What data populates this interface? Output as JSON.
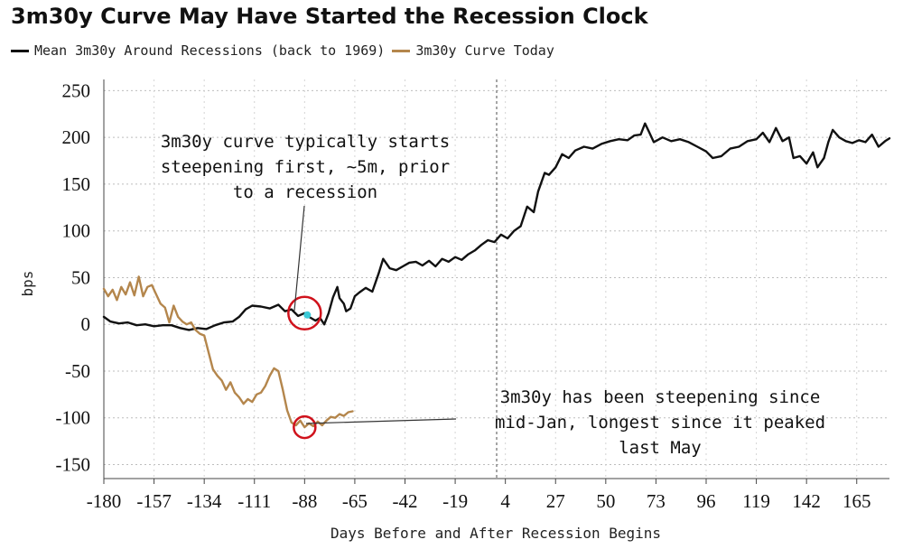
{
  "chart_data": {
    "type": "line",
    "title": "3m30y Curve May Have Started the Recession Clock",
    "xlabel": "Days Before and After Recession Begins",
    "ylabel": "bps",
    "xlim": [
      -180,
      180
    ],
    "ylim": [
      -165,
      262
    ],
    "x_ticks": [
      -180,
      -157,
      -134,
      -111,
      -88,
      -65,
      -42,
      -19,
      4,
      27,
      50,
      73,
      96,
      119,
      142,
      165
    ],
    "y_ticks": [
      250,
      200,
      150,
      100,
      50,
      0,
      -50,
      -100,
      -150
    ],
    "grid": true,
    "legend_position": "top-left",
    "vline_x": 0,
    "series": [
      {
        "name": "Mean 3m30y Around Recessions (back to 1969)",
        "color": "#111111",
        "points": [
          [
            -180,
            8
          ],
          [
            -177,
            3
          ],
          [
            -173,
            1
          ],
          [
            -169,
            2
          ],
          [
            -165,
            -1
          ],
          [
            -161,
            0
          ],
          [
            -157,
            -2
          ],
          [
            -153,
            -1
          ],
          [
            -149,
            -1
          ],
          [
            -145,
            -4
          ],
          [
            -141,
            -6
          ],
          [
            -137,
            -4
          ],
          [
            -133,
            -5
          ],
          [
            -129,
            -1
          ],
          [
            -125,
            2
          ],
          [
            -121,
            3
          ],
          [
            -118,
            8
          ],
          [
            -115,
            16
          ],
          [
            -112,
            20
          ],
          [
            -108,
            19
          ],
          [
            -104,
            17
          ],
          [
            -100,
            21
          ],
          [
            -97,
            14
          ],
          [
            -94,
            16
          ],
          [
            -91,
            9
          ],
          [
            -88,
            12
          ],
          [
            -86,
            8
          ],
          [
            -83,
            4
          ],
          [
            -81,
            7
          ],
          [
            -79,
            0
          ],
          [
            -77,
            12
          ],
          [
            -75,
            29
          ],
          [
            -73,
            40
          ],
          [
            -72,
            28
          ],
          [
            -70,
            22
          ],
          [
            -69,
            14
          ],
          [
            -67,
            17
          ],
          [
            -65,
            30
          ],
          [
            -63,
            34
          ],
          [
            -60,
            39
          ],
          [
            -57,
            35
          ],
          [
            -54,
            55
          ],
          [
            -52,
            70
          ],
          [
            -49,
            60
          ],
          [
            -46,
            58
          ],
          [
            -43,
            62
          ],
          [
            -40,
            66
          ],
          [
            -37,
            67
          ],
          [
            -34,
            63
          ],
          [
            -31,
            68
          ],
          [
            -28,
            62
          ],
          [
            -25,
            70
          ],
          [
            -22,
            67
          ],
          [
            -19,
            72
          ],
          [
            -16,
            69
          ],
          [
            -13,
            75
          ],
          [
            -10,
            79
          ],
          [
            -7,
            85
          ],
          [
            -4,
            90
          ],
          [
            -1,
            88
          ],
          [
            2,
            96
          ],
          [
            5,
            92
          ],
          [
            8,
            100
          ],
          [
            11,
            105
          ],
          [
            14,
            126
          ],
          [
            17,
            120
          ],
          [
            19,
            142
          ],
          [
            22,
            162
          ],
          [
            24,
            160
          ],
          [
            27,
            168
          ],
          [
            30,
            182
          ],
          [
            33,
            178
          ],
          [
            36,
            186
          ],
          [
            40,
            190
          ],
          [
            44,
            188
          ],
          [
            48,
            193
          ],
          [
            52,
            196
          ],
          [
            56,
            198
          ],
          [
            60,
            197
          ],
          [
            63,
            202
          ],
          [
            66,
            203
          ],
          [
            68,
            215
          ],
          [
            70,
            205
          ],
          [
            72,
            195
          ],
          [
            76,
            200
          ],
          [
            80,
            196
          ],
          [
            84,
            198
          ],
          [
            88,
            195
          ],
          [
            92,
            190
          ],
          [
            96,
            185
          ],
          [
            99,
            178
          ],
          [
            103,
            180
          ],
          [
            107,
            188
          ],
          [
            111,
            190
          ],
          [
            115,
            196
          ],
          [
            119,
            198
          ],
          [
            122,
            205
          ],
          [
            125,
            195
          ],
          [
            128,
            210
          ],
          [
            131,
            196
          ],
          [
            134,
            200
          ],
          [
            136,
            178
          ],
          [
            139,
            180
          ],
          [
            142,
            172
          ],
          [
            145,
            184
          ],
          [
            147,
            168
          ],
          [
            150,
            178
          ],
          [
            152,
            195
          ],
          [
            154,
            208
          ],
          [
            157,
            200
          ],
          [
            160,
            196
          ],
          [
            163,
            194
          ],
          [
            166,
            197
          ],
          [
            169,
            195
          ],
          [
            172,
            203
          ],
          [
            175,
            190
          ],
          [
            178,
            196
          ],
          [
            180,
            199
          ]
        ]
      },
      {
        "name": "3m30y Curve Today",
        "color": "#B4864C",
        "points": [
          [
            -180,
            38
          ],
          [
            -178,
            30
          ],
          [
            -176,
            37
          ],
          [
            -174,
            26
          ],
          [
            -172,
            40
          ],
          [
            -170,
            32
          ],
          [
            -168,
            45
          ],
          [
            -166,
            31
          ],
          [
            -164,
            51
          ],
          [
            -162,
            30
          ],
          [
            -160,
            40
          ],
          [
            -158,
            42
          ],
          [
            -156,
            32
          ],
          [
            -154,
            22
          ],
          [
            -152,
            18
          ],
          [
            -150,
            2
          ],
          [
            -148,
            20
          ],
          [
            -146,
            8
          ],
          [
            -144,
            3
          ],
          [
            -142,
            0
          ],
          [
            -140,
            2
          ],
          [
            -138,
            -6
          ],
          [
            -136,
            -10
          ],
          [
            -134,
            -12
          ],
          [
            -132,
            -30
          ],
          [
            -130,
            -48
          ],
          [
            -128,
            -55
          ],
          [
            -126,
            -60
          ],
          [
            -124,
            -70
          ],
          [
            -122,
            -62
          ],
          [
            -120,
            -73
          ],
          [
            -118,
            -78
          ],
          [
            -116,
            -85
          ],
          [
            -114,
            -80
          ],
          [
            -112,
            -83
          ],
          [
            -110,
            -75
          ],
          [
            -108,
            -73
          ],
          [
            -106,
            -66
          ],
          [
            -104,
            -55
          ],
          [
            -102,
            -47
          ],
          [
            -100,
            -50
          ],
          [
            -98,
            -70
          ],
          [
            -96,
            -92
          ],
          [
            -94,
            -105
          ],
          [
            -92,
            -108
          ],
          [
            -90,
            -103
          ],
          [
            -88,
            -110
          ],
          [
            -86,
            -106
          ],
          [
            -84,
            -109
          ],
          [
            -82,
            -104
          ],
          [
            -80,
            -108
          ],
          [
            -78,
            -103
          ],
          [
            -76,
            -99
          ],
          [
            -74,
            -100
          ],
          [
            -72,
            -96
          ],
          [
            -70,
            -98
          ],
          [
            -68,
            -94
          ],
          [
            -66,
            -93
          ]
        ]
      }
    ],
    "annotations": [
      {
        "lines": [
          "3m30y curve typically starts",
          "steepening first, ~5m, prior",
          "to a recession"
        ]
      },
      {
        "lines": [
          "3m30y has been steepening since",
          "mid-Jan, longest since it peaked",
          "last May"
        ]
      }
    ]
  }
}
